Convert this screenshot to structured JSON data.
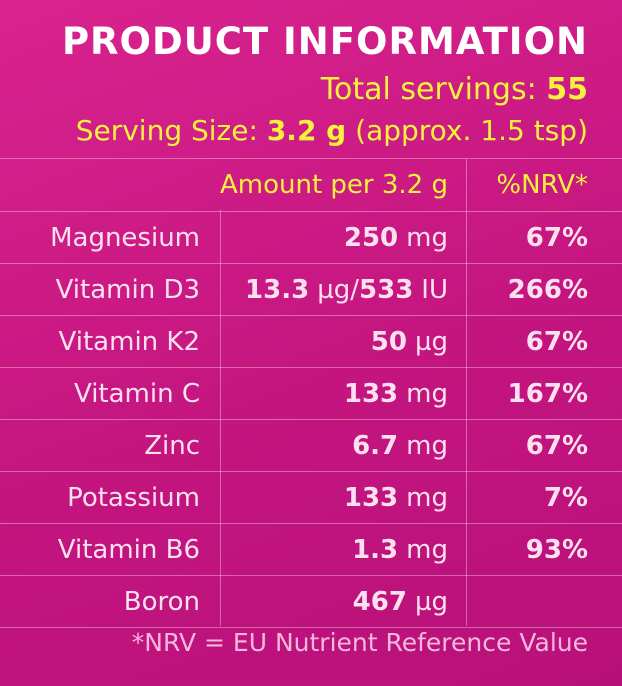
{
  "header": {
    "title": "PRODUCT INFORMATION",
    "servings_label": "Total servings:",
    "servings_value": "55",
    "serving_size_label": "Serving Size:",
    "serving_size_value": "3.2 g",
    "serving_size_note": "(approx. 1.5 tsp)"
  },
  "table": {
    "col_amount": "Amount per 3.2 g",
    "col_nrv": "%NRV*",
    "rows": [
      {
        "name": "Magnesium",
        "amount": "250",
        "unit": "mg",
        "nrv": "67%"
      },
      {
        "name": "Vitamin D3",
        "amount": "13.3",
        "unit": "µg/",
        "amount2": "533",
        "unit2": "IU",
        "nrv": "266%"
      },
      {
        "name": "Vitamin K2",
        "amount": "50",
        "unit": "µg",
        "nrv": "67%"
      },
      {
        "name": "Vitamin C",
        "amount": "133",
        "unit": "mg",
        "nrv": "167%"
      },
      {
        "name": "Zinc",
        "amount": "6.7",
        "unit": "mg",
        "nrv": "67%"
      },
      {
        "name": "Potassium",
        "amount": "133",
        "unit": "mg",
        "nrv": "7%"
      },
      {
        "name": "Vitamin B6",
        "amount": "1.3",
        "unit": "mg",
        "nrv": "93%"
      },
      {
        "name": "Boron",
        "amount": "467",
        "unit": "µg",
        "nrv": ""
      }
    ]
  },
  "footnote": "*NRV = EU Nutrient Reference Value"
}
